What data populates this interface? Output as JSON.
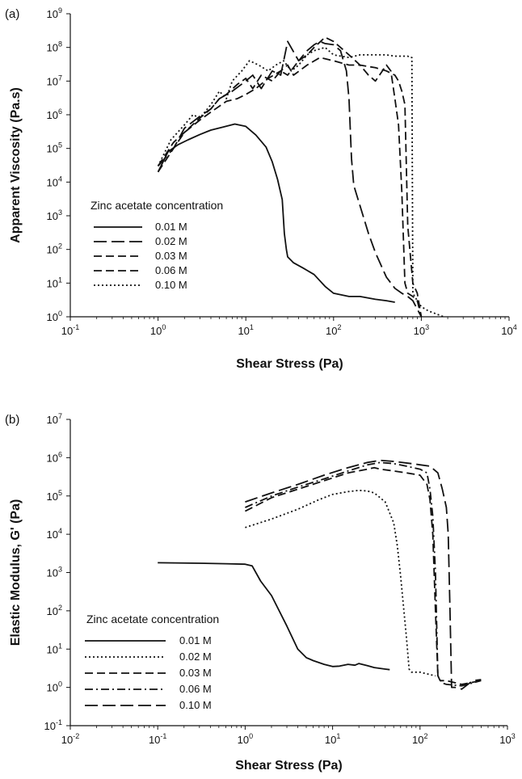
{
  "chart_data": [
    {
      "panel_label": "(a)",
      "type": "line",
      "xlabel": "Shear Stress (Pa)",
      "ylabel": "Apparent Viscosity (Pa.s)",
      "x_scale": "log",
      "y_scale": "log",
      "xlim": [
        0.1,
        10000
      ],
      "ylim": [
        1,
        1000000000
      ],
      "x_tick_labels": [
        {
          "base": "10",
          "exp": "-1"
        },
        {
          "base": "10",
          "exp": "0"
        },
        {
          "base": "10",
          "exp": "1"
        },
        {
          "base": "10",
          "exp": "2"
        },
        {
          "base": "10",
          "exp": "3"
        },
        {
          "base": "10",
          "exp": "4"
        }
      ],
      "y_tick_labels": [
        {
          "base": "10",
          "exp": "0"
        },
        {
          "base": "10",
          "exp": "1"
        },
        {
          "base": "10",
          "exp": "2"
        },
        {
          "base": "10",
          "exp": "3"
        },
        {
          "base": "10",
          "exp": "4"
        },
        {
          "base": "10",
          "exp": "5"
        },
        {
          "base": "10",
          "exp": "6"
        },
        {
          "base": "10",
          "exp": "7"
        },
        {
          "base": "10",
          "exp": "8"
        },
        {
          "base": "10",
          "exp": "9"
        }
      ],
      "legend": {
        "title": "Zinc acetate concentration",
        "placement": "lower-left"
      },
      "series": [
        {
          "name": "0.01 M",
          "style": "solid",
          "x": [
            1,
            1.3,
            1.7,
            2.2,
            3,
            4,
            5.5,
            7.5,
            10,
            13,
            17,
            20,
            23,
            26,
            27.5,
            29,
            30,
            35,
            45,
            60,
            80,
            100,
            150,
            200,
            300,
            400,
            500
          ],
          "y": [
            20000,
            80000,
            130000,
            180000,
            260000,
            350000,
            430000,
            530000,
            450000,
            250000,
            110000,
            40000,
            12000,
            3000,
            300,
            100,
            60,
            40,
            28,
            18,
            8,
            5,
            4,
            4,
            3.3,
            3,
            2.7
          ]
        },
        {
          "name": "0.02 M",
          "style": "long-dash",
          "x": [
            1,
            1.5,
            2,
            3,
            4,
            5,
            7,
            10,
            12,
            15,
            20,
            25,
            30,
            40,
            50,
            60,
            70,
            80,
            100,
            120,
            140,
            150,
            160,
            170,
            200,
            250,
            300,
            400,
            500,
            600,
            700,
            800,
            1000
          ],
          "y": [
            30000,
            100000,
            400000,
            900000,
            1500000,
            3000000,
            5000000,
            10000000,
            15000000,
            6000000,
            20000000,
            15000000,
            150000000,
            40000000,
            80000000,
            120000000,
            150000000,
            130000000,
            120000000,
            80000000,
            20000000,
            3000000,
            50000,
            8000,
            2000,
            300,
            80,
            15,
            7,
            5,
            4,
            3,
            1
          ]
        },
        {
          "name": "0.03 M",
          "style": "dash",
          "x": [
            1,
            1.5,
            2,
            3,
            4,
            5,
            6,
            8,
            10,
            12,
            15,
            20,
            25,
            30,
            40,
            50,
            60,
            80,
            100,
            120,
            150,
            200,
            250,
            300,
            400,
            450,
            500,
            550,
            600,
            650,
            700,
            800,
            900,
            1000
          ],
          "y": [
            30000,
            150000,
            300000,
            800000,
            1500000,
            3000000,
            4000000,
            8000000,
            12000000,
            6000000,
            15000000,
            10000000,
            20000000,
            15000000,
            40000000,
            60000000,
            100000000,
            200000000,
            150000000,
            100000000,
            60000000,
            30000000,
            15000000,
            10000000,
            30000000,
            20000000,
            3000000,
            500000,
            5000,
            10,
            5,
            4,
            3,
            1
          ]
        },
        {
          "name": "0.06 M",
          "style": "dash",
          "x": [
            1,
            1.5,
            2,
            3,
            4,
            6,
            8,
            10,
            13,
            18,
            25,
            30,
            35,
            50,
            70,
            100,
            150,
            200,
            300,
            400,
            500,
            550,
            600,
            650,
            700,
            800,
            900,
            1000
          ],
          "y": [
            20000,
            100000,
            300000,
            700000,
            1200000,
            2500000,
            3000000,
            4000000,
            6000000,
            12000000,
            20000000,
            30000000,
            15000000,
            30000000,
            50000000,
            40000000,
            30000000,
            30000000,
            25000000,
            20000000,
            15000000,
            10000000,
            5000000,
            2000000,
            500,
            10,
            5,
            1
          ]
        },
        {
          "name": "0.10 M",
          "style": "dotted",
          "x": [
            1,
            1.4,
            2,
            2.5,
            3,
            4,
            5,
            6,
            7,
            9,
            11,
            14,
            18,
            22,
            27,
            33,
            40,
            50,
            60,
            80,
            100,
            150,
            200,
            250,
            300,
            400,
            500,
            600,
            700,
            740,
            780,
            800,
            900,
            1000,
            1200,
            1500,
            1800
          ],
          "y": [
            30000,
            180000,
            500000,
            1000000,
            800000,
            2000000,
            5000000,
            3000000,
            10000000,
            20000000,
            40000000,
            30000000,
            20000000,
            30000000,
            40000000,
            20000000,
            30000000,
            60000000,
            80000000,
            100000000,
            60000000,
            50000000,
            60000000,
            60000000,
            60000000,
            60000000,
            55000000,
            55000000,
            55000000,
            50000000,
            50000000,
            5,
            3,
            2,
            1.5,
            1.2,
            1
          ]
        }
      ]
    },
    {
      "panel_label": "(b)",
      "type": "line",
      "xlabel": "Shear Stress (Pa)",
      "ylabel": "Elastic Modulus, G' (Pa)",
      "x_scale": "log",
      "y_scale": "log",
      "xlim": [
        0.01,
        1000
      ],
      "ylim": [
        0.1,
        10000000
      ],
      "x_tick_labels": [
        {
          "base": "10",
          "exp": "-2"
        },
        {
          "base": "10",
          "exp": "-1"
        },
        {
          "base": "10",
          "exp": "0"
        },
        {
          "base": "10",
          "exp": "1"
        },
        {
          "base": "10",
          "exp": "2"
        },
        {
          "base": "10",
          "exp": "3"
        }
      ],
      "y_tick_labels": [
        {
          "base": "10",
          "exp": "-1"
        },
        {
          "base": "10",
          "exp": "0"
        },
        {
          "base": "10",
          "exp": "1"
        },
        {
          "base": "10",
          "exp": "2"
        },
        {
          "base": "10",
          "exp": "3"
        },
        {
          "base": "10",
          "exp": "4"
        },
        {
          "base": "10",
          "exp": "5"
        },
        {
          "base": "10",
          "exp": "6"
        },
        {
          "base": "10",
          "exp": "7"
        }
      ],
      "legend": {
        "title": "Zinc acetate concentration",
        "placement": "lower-left"
      },
      "series": [
        {
          "name": "0.01 M",
          "style": "solid",
          "x": [
            0.1,
            0.3,
            0.6,
            1,
            1.2,
            1.5,
            2,
            3,
            4,
            5,
            6,
            8,
            10,
            12,
            15,
            18,
            20,
            25,
            30,
            40,
            45
          ],
          "y": [
            1800,
            1750,
            1700,
            1650,
            1500,
            600,
            250,
            40,
            10,
            6,
            5,
            4,
            3.5,
            3.6,
            4,
            3.8,
            4.2,
            3.7,
            3.3,
            3,
            2.9
          ]
        },
        {
          "name": "0.02 M",
          "style": "dotted",
          "x": [
            1,
            2,
            4,
            7,
            10,
            15,
            20,
            25,
            30,
            40,
            50,
            55,
            60,
            70,
            75,
            80,
            90,
            100,
            150
          ],
          "y": [
            15000,
            25000,
            45000,
            80000,
            110000,
            130000,
            140000,
            135000,
            120000,
            70000,
            20000,
            5000,
            800,
            20,
            3,
            2.5,
            2.5,
            2.5,
            2
          ]
        },
        {
          "name": "0.03 M",
          "style": "dash",
          "x": [
            1,
            2,
            4,
            8,
            15,
            25,
            30,
            35,
            50,
            70,
            100,
            120,
            130,
            140,
            150,
            160,
            170,
            200,
            300,
            500
          ],
          "y": [
            40000,
            90000,
            150000,
            250000,
            400000,
            500000,
            550000,
            500000,
            450000,
            400000,
            350000,
            200000,
            80000,
            10000,
            100,
            2,
            1.5,
            1.5,
            1.2,
            1.5
          ]
        },
        {
          "name": "0.06 M",
          "style": "dash-dot",
          "x": [
            1,
            2,
            4,
            8,
            15,
            25,
            35,
            50,
            70,
            100,
            120,
            130,
            140,
            150,
            160,
            180,
            200,
            300,
            500
          ],
          "y": [
            50000,
            100000,
            170000,
            280000,
            450000,
            650000,
            750000,
            700000,
            600000,
            500000,
            400000,
            150000,
            30000,
            1000,
            2,
            1.3,
            1.2,
            1.1,
            1.5
          ]
        },
        {
          "name": "0.10 M",
          "style": "long-dash",
          "x": [
            1,
            2,
            4,
            8,
            15,
            25,
            35,
            50,
            80,
            100,
            130,
            160,
            180,
            200,
            210,
            220,
            230,
            250,
            300,
            400,
            500
          ],
          "y": [
            70000,
            120000,
            200000,
            350000,
            550000,
            750000,
            850000,
            800000,
            700000,
            650000,
            600000,
            400000,
            150000,
            50000,
            10000,
            100,
            1,
            1,
            0.9,
            1.5,
            1.6
          ]
        }
      ]
    }
  ]
}
